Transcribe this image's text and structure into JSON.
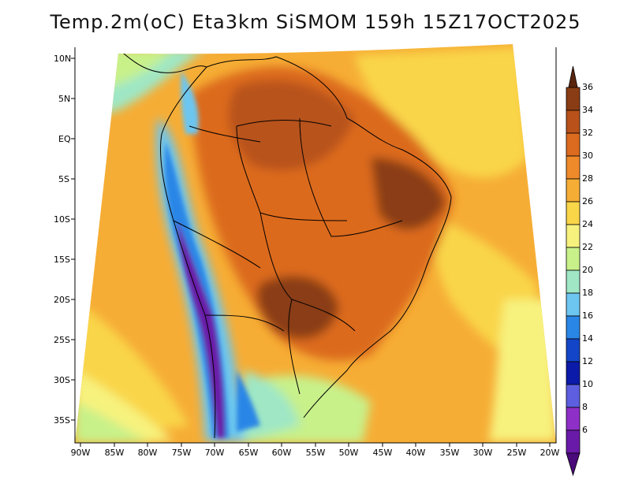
{
  "title": "Temp.2m(oC) Eta3km SiSMOM 159h 15Z17OCT2025",
  "variable": "Temp.2m",
  "units": "oC",
  "lat_labels": [
    "10N",
    "5N",
    "EQ",
    "5S",
    "10S",
    "15S",
    "20S",
    "25S",
    "30S",
    "35S"
  ],
  "lon_labels": [
    "90W",
    "85W",
    "80W",
    "75W",
    "70W",
    "65W",
    "60W",
    "55W",
    "50W",
    "45W",
    "40W",
    "35W",
    "30W",
    "25W",
    "20W"
  ],
  "colorbar": {
    "labels": [
      "36",
      "34",
      "32",
      "30",
      "28",
      "26",
      "24",
      "22",
      "20",
      "18",
      "16",
      "14",
      "12",
      "10",
      "8",
      "6"
    ],
    "colors": [
      "#5a250e",
      "#8a3d14",
      "#b8521a",
      "#dc6a1f",
      "#ef8a2a",
      "#f6ad35",
      "#f9d548",
      "#f7f27e",
      "#c8f18a",
      "#9fe7c5",
      "#6cc6f0",
      "#2a86e6",
      "#1345c8",
      "#0b1aa8",
      "#5d5fe0",
      "#8e30c8",
      "#6a1aa8",
      "#4a0a7a"
    ]
  }
}
